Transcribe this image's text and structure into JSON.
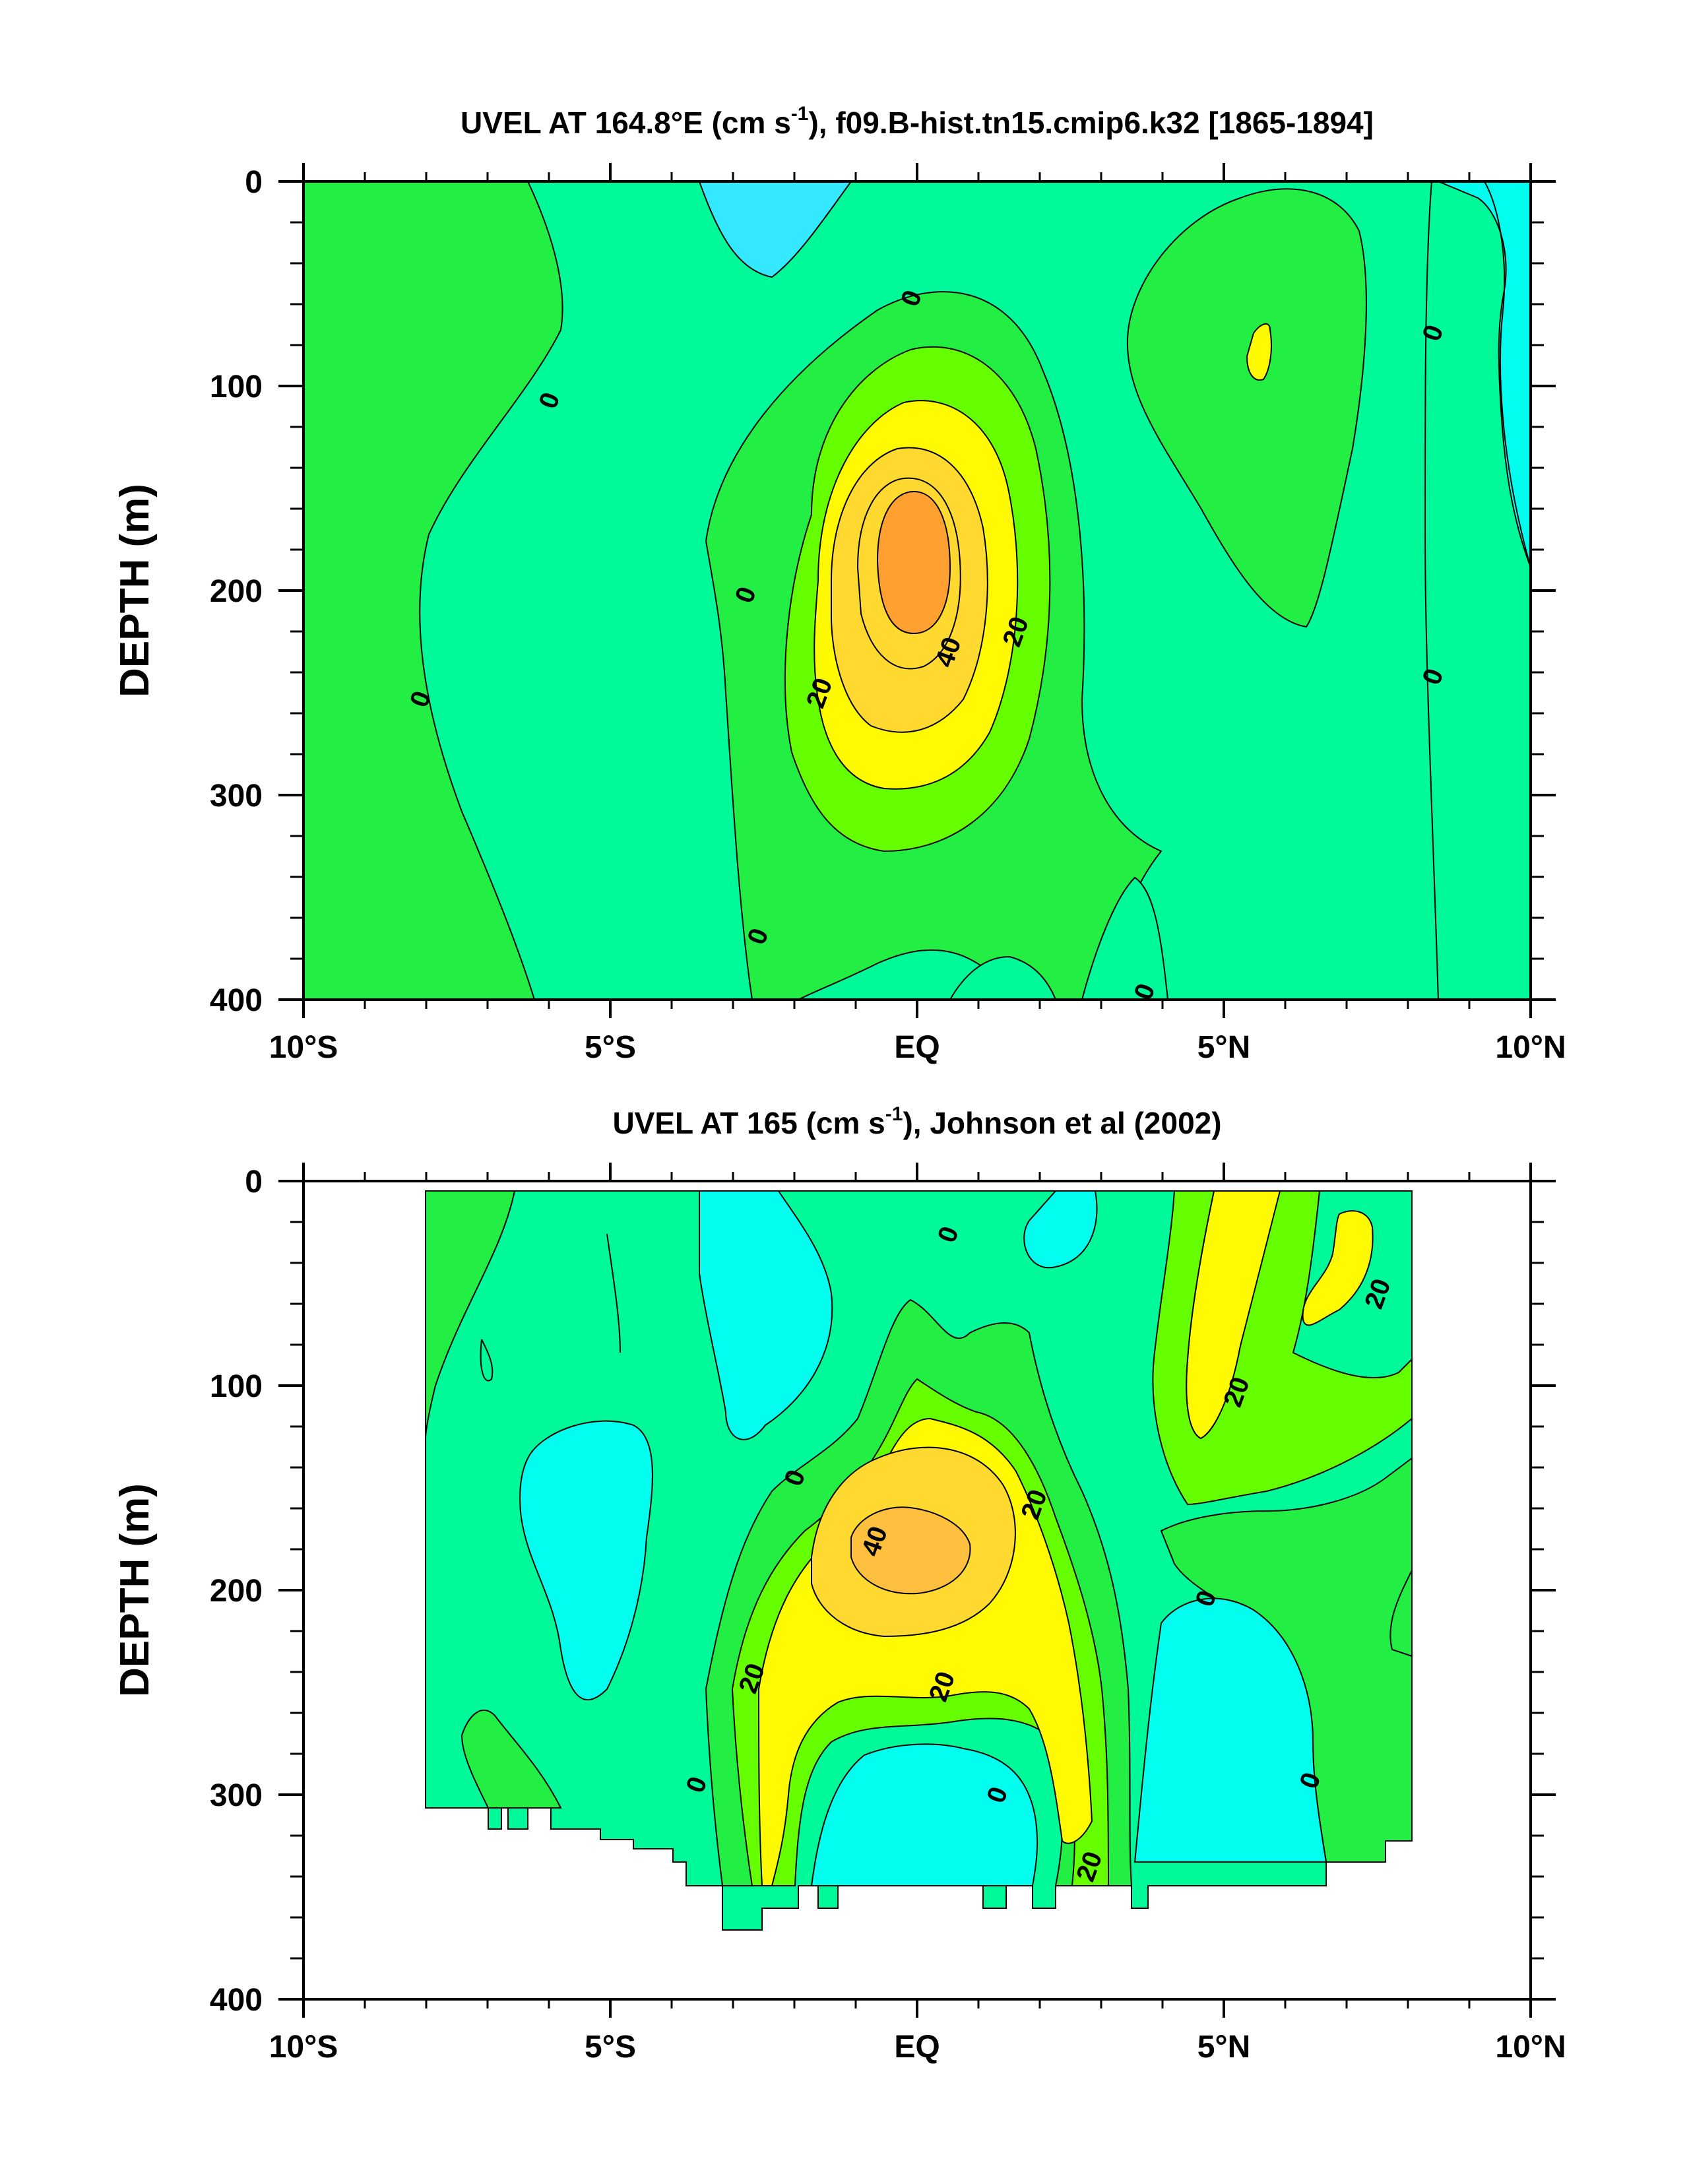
{
  "palette": {
    "lt_m20": "#33e8ff",
    "m20_0": "#00ffee",
    "0_10": "#00fa9a",
    "10_20": "#22ee44",
    "20_30": "#66ff00",
    "30_40": "#fffa00",
    "40_50": "#ffd830",
    "50_60": "#ffa030"
  },
  "chart_data": [
    {
      "type": "heatmap",
      "title": "UVEL AT 164.8°E (cm s-1), f09.B-hist.tn15.cmip6.k32 [1865-1894]",
      "ylabel": "DEPTH (m)",
      "xlabel": "",
      "xlim": [
        -10,
        10
      ],
      "ylim": [
        0,
        400
      ],
      "y_inverted": true,
      "x_ticks": [
        -10,
        -5,
        0,
        5,
        10
      ],
      "x_tick_labels": [
        "10°S",
        "5°S",
        "EQ",
        "5°N",
        "10°N"
      ],
      "y_ticks": [
        0,
        100,
        200,
        300,
        400
      ],
      "y_tick_labels": [
        "0",
        "100",
        "200",
        "300",
        "400"
      ],
      "contour_labels": [
        {
          "text": "0",
          "lat": -6.0,
          "depth": 107
        },
        {
          "text": "0",
          "lat": -8.1,
          "depth": 253
        },
        {
          "text": "0",
          "lat": -2.8,
          "depth": 202
        },
        {
          "text": "0",
          "lat": -2.6,
          "depth": 369
        },
        {
          "text": "0",
          "lat": -0.1,
          "depth": 57
        },
        {
          "text": "0",
          "lat": 8.4,
          "depth": 74
        },
        {
          "text": "0",
          "lat": 8.4,
          "depth": 242
        },
        {
          "text": "0",
          "lat": 3.7,
          "depth": 396
        },
        {
          "text": "20",
          "lat": -1.6,
          "depth": 250
        },
        {
          "text": "40",
          "lat": 0.5,
          "depth": 230
        },
        {
          "text": "20",
          "lat": 1.6,
          "depth": 220
        }
      ]
    },
    {
      "type": "heatmap",
      "title": "UVEL AT 165 (cm s-1), Johnson et al (2002)",
      "ylabel": "DEPTH (m)",
      "xlabel": "",
      "xlim": [
        -10,
        10
      ],
      "ylim": [
        0,
        400
      ],
      "y_inverted": true,
      "data_extent_lat": [
        -8,
        8
      ],
      "x_ticks": [
        -10,
        -5,
        0,
        5,
        10
      ],
      "x_tick_labels": [
        "10°S",
        "5°S",
        "EQ",
        "5°N",
        "10°N"
      ],
      "y_ticks": [
        0,
        100,
        200,
        300,
        400
      ],
      "y_tick_labels": [
        "0",
        "100",
        "200",
        "300",
        "400"
      ],
      "contour_labels": [
        {
          "text": "0",
          "lat": 0.5,
          "depth": 26
        },
        {
          "text": "20",
          "lat": 7.5,
          "depth": 55
        },
        {
          "text": "20",
          "lat": 5.2,
          "depth": 103
        },
        {
          "text": "0",
          "lat": -2.0,
          "depth": 145
        },
        {
          "text": "20",
          "lat": 1.9,
          "depth": 158
        },
        {
          "text": "40",
          "lat": -0.7,
          "depth": 176
        },
        {
          "text": "0",
          "lat": 4.7,
          "depth": 204
        },
        {
          "text": "20",
          "lat": 0.4,
          "depth": 247
        },
        {
          "text": "20",
          "lat": -2.7,
          "depth": 243
        },
        {
          "text": "0",
          "lat": -3.6,
          "depth": 295
        },
        {
          "text": "0",
          "lat": 1.3,
          "depth": 300
        },
        {
          "text": "0",
          "lat": 6.4,
          "depth": 293
        },
        {
          "text": "20",
          "lat": 2.8,
          "depth": 335
        }
      ]
    }
  ]
}
